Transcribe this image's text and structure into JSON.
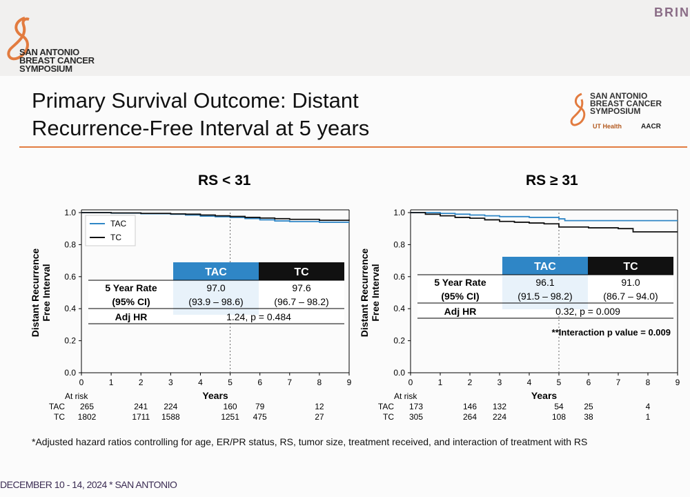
{
  "header": {
    "org_line1": "SAN ANTONIO",
    "org_line2": "BREAST CANCER",
    "org_line3": "SYMPOSIUM",
    "corner_text": "BRIN"
  },
  "slide": {
    "title_line1": "Primary Survival Outcome: Distant",
    "title_line2": "Recurrence-Free Interval at 5 years",
    "logo2_line1": "SAN ANTONIO",
    "logo2_line2": "BREAST CANCER",
    "logo2_line3": "SYMPOSIUM",
    "ut_label": "UT Health",
    "aacr_label": "AACR",
    "footnote": "*Adjusted hazard ratios controlling for age, ER/PR status, RS, tumor size, treatment received, and interaction of treatment with RS",
    "date_line": "DECEMBER 10 - 14, 2024 * SAN ANTONIO"
  },
  "colors": {
    "tac": "#2f86c6",
    "tc": "#111111",
    "accent": "#e27b3f"
  },
  "chart_data": [
    {
      "type": "line",
      "title": "RS < 31",
      "xlabel": "Years",
      "ylabel": "Distant Recurrence Free Interval",
      "xlim": [
        0,
        9
      ],
      "ylim": [
        0,
        1
      ],
      "xticks": [
        0,
        1,
        2,
        3,
        4,
        5,
        6,
        7,
        8,
        9
      ],
      "yticks": [
        0.0,
        0.2,
        0.4,
        0.6,
        0.8,
        1.0
      ],
      "reference_line_x": 5,
      "legend": [
        "TAC",
        "TC"
      ],
      "series": [
        {
          "name": "TAC",
          "x": [
            0,
            1,
            2,
            3,
            3.5,
            4,
            4.5,
            5,
            5.5,
            6,
            6.5,
            7,
            8,
            9
          ],
          "y": [
            1.0,
            0.997,
            0.993,
            0.99,
            0.985,
            0.978,
            0.974,
            0.97,
            0.963,
            0.955,
            0.948,
            0.944,
            0.94,
            0.94
          ]
        },
        {
          "name": "TC",
          "x": [
            0,
            1,
            2,
            3,
            3.5,
            4,
            4.5,
            5,
            5.5,
            6,
            6.5,
            7,
            8,
            9
          ],
          "y": [
            1.0,
            0.998,
            0.995,
            0.992,
            0.99,
            0.985,
            0.98,
            0.976,
            0.97,
            0.966,
            0.962,
            0.958,
            0.952,
            0.95
          ]
        }
      ],
      "table": {
        "col_tac": "TAC",
        "col_tc": "TC",
        "row1_label": "5 Year Rate",
        "row1_tac": "97.0",
        "row1_tc": "97.6",
        "row2_label": "(95% CI)",
        "row2_tac": "(93.9 – 98.6)",
        "row2_tc": "(96.7 – 98.2)",
        "row3_label": "Adj HR",
        "row3_value": "1.24, p = 0.484"
      },
      "at_risk": {
        "label": "At risk",
        "times": [
          0,
          2,
          3,
          5,
          6,
          8
        ],
        "TAC": [
          "265",
          "241",
          "224",
          "160",
          "79",
          "12"
        ],
        "TC": [
          "1802",
          "1711",
          "1588",
          "1251",
          "475",
          "27"
        ]
      }
    },
    {
      "type": "line",
      "title": "RS ≥ 31",
      "xlabel": "Years",
      "ylabel": "Distant Recurrence Free Interval",
      "xlim": [
        0,
        9
      ],
      "ylim": [
        0,
        1
      ],
      "xticks": [
        0,
        1,
        2,
        3,
        4,
        5,
        6,
        7,
        8,
        9
      ],
      "yticks": [
        0.0,
        0.2,
        0.4,
        0.6,
        0.8,
        1.0
      ],
      "reference_line_x": 5,
      "series": [
        {
          "name": "TAC",
          "x": [
            0,
            0.5,
            1,
            1.5,
            2,
            2.5,
            3,
            4,
            5,
            5.2,
            6,
            7,
            8,
            9
          ],
          "y": [
            1.0,
            1.0,
            0.995,
            0.99,
            0.985,
            0.98,
            0.975,
            0.97,
            0.961,
            0.95,
            0.95,
            0.95,
            0.95,
            0.95
          ]
        },
        {
          "name": "TC",
          "x": [
            0,
            0.5,
            1,
            1.5,
            2,
            2.5,
            3,
            3.5,
            4,
            4.5,
            5,
            6,
            7,
            7.5,
            8,
            9
          ],
          "y": [
            1.0,
            0.99,
            0.98,
            0.97,
            0.965,
            0.955,
            0.945,
            0.94,
            0.935,
            0.93,
            0.91,
            0.905,
            0.9,
            0.88,
            0.88,
            0.88
          ]
        }
      ],
      "table": {
        "col_tac": "TAC",
        "col_tc": "TC",
        "row1_label": "5 Year Rate",
        "row1_tac": "96.1",
        "row1_tc": "91.0",
        "row2_label": "(95% CI)",
        "row2_tac": "(91.5 – 98.2)",
        "row2_tc": "(86.7 – 94.0)",
        "row3_label": "Adj HR",
        "row3_value": "0.32, p = 0.009",
        "interaction": "**Interaction p value = 0.009"
      },
      "at_risk": {
        "label": "At risk",
        "times": [
          0,
          2,
          3,
          5,
          6,
          8
        ],
        "TAC": [
          "173",
          "146",
          "132",
          "54",
          "25",
          "4"
        ],
        "TC": [
          "305",
          "264",
          "224",
          "108",
          "38",
          "1"
        ]
      }
    }
  ]
}
